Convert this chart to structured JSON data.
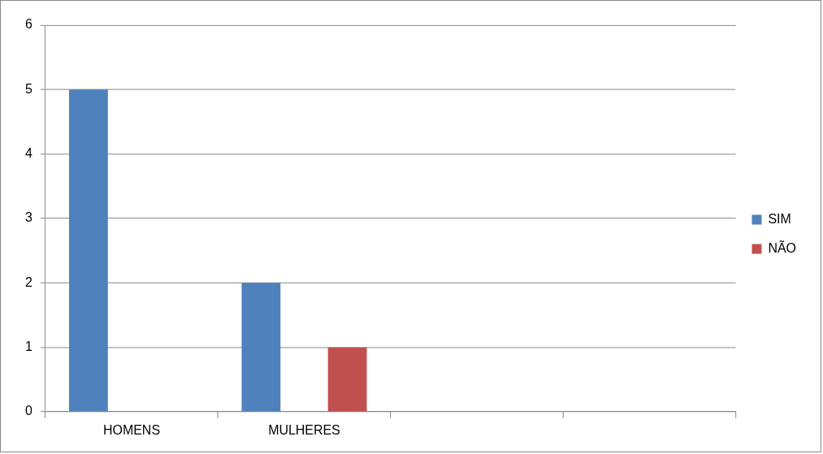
{
  "chart_data": {
    "type": "bar",
    "categories": [
      "HOMENS",
      "MULHERES",
      null,
      null
    ],
    "series": [
      {
        "name": "SIM",
        "color": "#4f81bd",
        "values": [
          5,
          2,
          null,
          null
        ]
      },
      {
        "name": "NÃO",
        "color": "#c0504d",
        "values": [
          null,
          1,
          null,
          null
        ]
      }
    ],
    "ylim": [
      0,
      6
    ],
    "yticks": [
      0,
      1,
      2,
      3,
      4,
      5,
      6
    ],
    "grid": "y",
    "legend": "right"
  }
}
